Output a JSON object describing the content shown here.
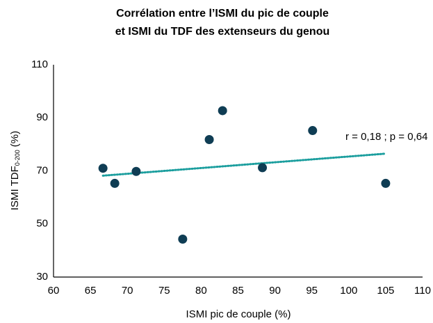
{
  "chart_data": {
    "type": "scatter",
    "title": [
      "Corrélation entre l’ISMI du pic de couple",
      "et ISMI du TDF des extenseurs du genou"
    ],
    "xlabel": "ISMI pic de couple (%)",
    "ylabel": {
      "text": "ISMI TDF",
      "subscript": "0-200",
      "suffix": "(%)"
    },
    "x": [
      66.7,
      68.3,
      71.2,
      77.5,
      81.1,
      82.9,
      88.3,
      95.1,
      105
    ],
    "values": [
      71,
      65.3,
      69.8,
      44.3,
      81.8,
      92.7,
      71.2,
      85.2,
      65.3
    ],
    "color": "#0f3d54",
    "trendline": {
      "x": [
        66.7,
        105
      ],
      "y": [
        68.2,
        76.5
      ],
      "color": "#1b9e9e"
    },
    "annotation": "r = 0,18 ; p = 0,64",
    "xlim": [
      60,
      110
    ],
    "xticks": [
      60,
      65,
      70,
      75,
      80,
      85,
      90,
      95,
      100,
      105,
      110
    ],
    "ylim": [
      30,
      110
    ],
    "yticks": [
      30,
      50,
      70,
      90,
      110
    ]
  }
}
